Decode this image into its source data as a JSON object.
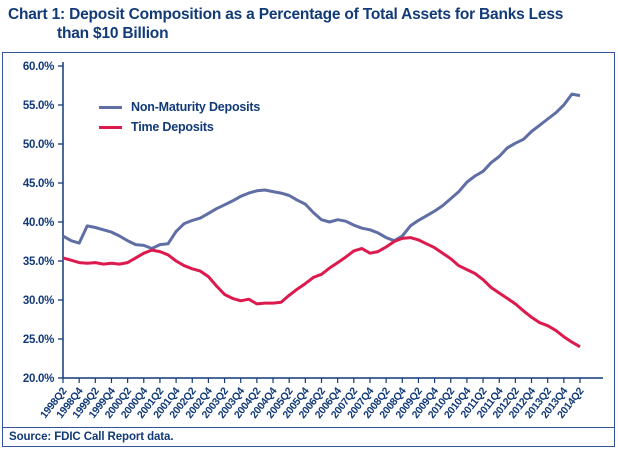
{
  "title": {
    "line1": "Chart 1: Deposit Composition as a Percentage of Total Assets for Banks Less",
    "line2": "than $10 Billion"
  },
  "source_note": "Source: FDIC Call Report data.",
  "colors": {
    "navy_text": "#123a78",
    "axis": "#123a78",
    "box_border": "#33549c",
    "non_maturity_line": "#5f6ea4",
    "time_line": "#dc1a4e"
  },
  "chart_data": {
    "type": "line",
    "title": "Chart 1: Deposit Composition as a Percentage of Total Assets for Banks Less than $10 Billion",
    "xlabel": "",
    "ylabel": "",
    "ylim": [
      20,
      60
    ],
    "ytick_step": 5,
    "grid": false,
    "legend_position": "inside-top-left",
    "y_tick_labels": [
      "60.0%",
      "55.0%",
      "50.0%",
      "45.0%",
      "40.0%",
      "35.0%",
      "30.0%",
      "25.0%",
      "20.0%"
    ],
    "x_tick_labels": [
      "1998Q2",
      "1998Q4",
      "1999Q2",
      "1999Q4",
      "2000Q2",
      "2000Q4",
      "2001Q2",
      "2001Q4",
      "2002Q2",
      "2002Q4",
      "2003Q2",
      "2003Q4",
      "2004Q2",
      "2004Q4",
      "2005Q2",
      "2005Q4",
      "2006Q2",
      "2006Q4",
      "2007Q2",
      "2007Q4",
      "2008Q2",
      "2008Q4",
      "2009Q2",
      "2009Q4",
      "2010Q2",
      "2010Q4",
      "2011Q2",
      "2011Q4",
      "2012Q2",
      "2012Q4",
      "2013Q2",
      "2013Q4",
      "2014Q2"
    ],
    "categories": [
      "1998Q2",
      "1998Q3",
      "1998Q4",
      "1999Q1",
      "1999Q2",
      "1999Q3",
      "1999Q4",
      "2000Q1",
      "2000Q2",
      "2000Q3",
      "2000Q4",
      "2001Q1",
      "2001Q2",
      "2001Q3",
      "2001Q4",
      "2002Q1",
      "2002Q2",
      "2002Q3",
      "2002Q4",
      "2003Q1",
      "2003Q2",
      "2003Q3",
      "2003Q4",
      "2004Q1",
      "2004Q2",
      "2004Q3",
      "2004Q4",
      "2005Q1",
      "2005Q2",
      "2005Q3",
      "2005Q4",
      "2006Q1",
      "2006Q2",
      "2006Q3",
      "2006Q4",
      "2007Q1",
      "2007Q2",
      "2007Q3",
      "2007Q4",
      "2008Q1",
      "2008Q2",
      "2008Q3",
      "2008Q4",
      "2009Q1",
      "2009Q2",
      "2009Q3",
      "2009Q4",
      "2010Q1",
      "2010Q2",
      "2010Q3",
      "2010Q4",
      "2011Q1",
      "2011Q2",
      "2011Q3",
      "2011Q4",
      "2012Q1",
      "2012Q2",
      "2012Q3",
      "2012Q4",
      "2013Q1",
      "2013Q2",
      "2013Q3",
      "2013Q4",
      "2014Q1",
      "2014Q2"
    ],
    "series": [
      {
        "name": "Non-Maturity Deposits",
        "color": "#5f6ea4",
        "values": [
          38.2,
          37.6,
          37.3,
          39.5,
          39.3,
          39.0,
          38.7,
          38.2,
          37.6,
          37.1,
          37.0,
          36.6,
          37.1,
          37.2,
          38.8,
          39.8,
          40.2,
          40.5,
          41.1,
          41.7,
          42.2,
          42.7,
          43.3,
          43.7,
          44.0,
          44.1,
          43.9,
          43.7,
          43.4,
          42.8,
          42.3,
          41.2,
          40.3,
          40.0,
          40.3,
          40.1,
          39.6,
          39.2,
          39.0,
          38.6,
          38.0,
          37.6,
          38.2,
          39.5,
          40.2,
          40.8,
          41.4,
          42.1,
          43.0,
          43.9,
          45.1,
          45.9,
          46.5,
          47.6,
          48.4,
          49.5,
          50.1,
          50.6,
          51.6,
          52.4,
          53.2,
          54.0,
          55.0,
          56.4,
          56.2
        ]
      },
      {
        "name": "Time Deposits",
        "color": "#dc1a4e",
        "values": [
          35.4,
          35.1,
          34.8,
          34.7,
          34.8,
          34.6,
          34.7,
          34.6,
          34.8,
          35.4,
          36.0,
          36.4,
          36.2,
          35.8,
          35.0,
          34.4,
          34.0,
          33.7,
          33.0,
          31.8,
          30.7,
          30.2,
          29.9,
          30.1,
          29.5,
          29.6,
          29.6,
          29.7,
          30.6,
          31.4,
          32.1,
          32.9,
          33.3,
          34.1,
          34.8,
          35.5,
          36.3,
          36.6,
          36.0,
          36.2,
          36.8,
          37.5,
          37.9,
          38.0,
          37.7,
          37.2,
          36.7,
          36.0,
          35.3,
          34.4,
          33.9,
          33.4,
          32.6,
          31.6,
          30.9,
          30.2,
          29.5,
          28.6,
          27.8,
          27.1,
          26.7,
          26.1,
          25.3,
          24.6,
          24.0
        ]
      }
    ]
  }
}
